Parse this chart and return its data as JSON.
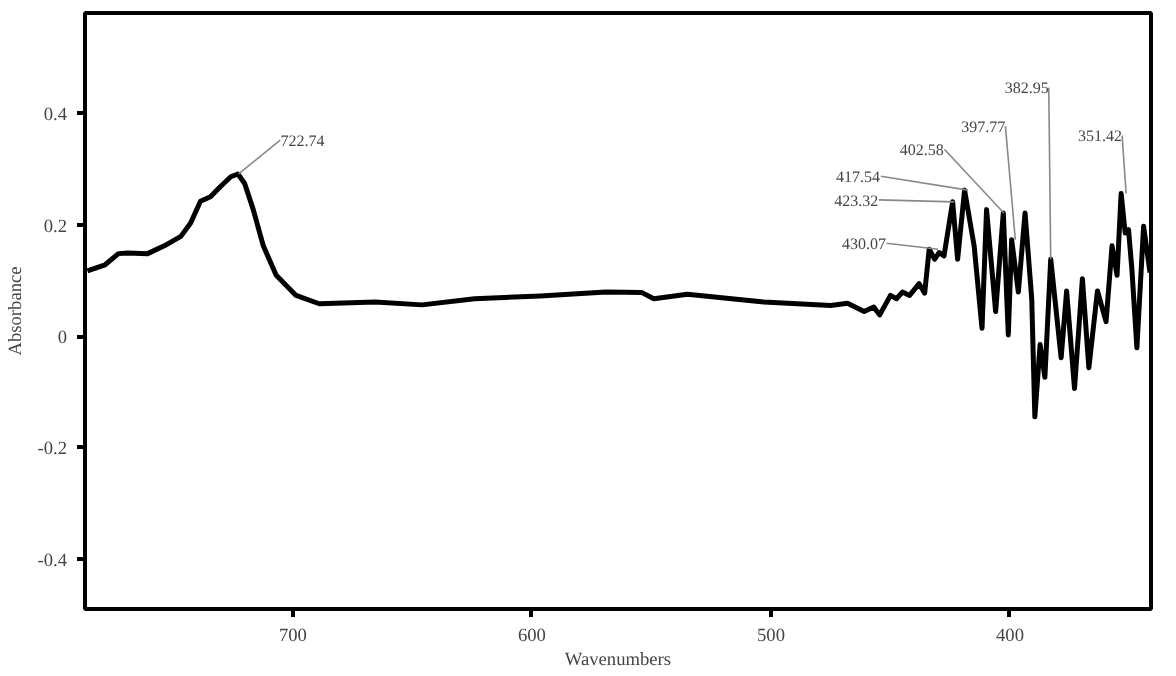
{
  "chart_data": {
    "type": "line",
    "xlabel": "Wavenumbers",
    "ylabel": "Absorbance",
    "xlim": [
      787,
      341
    ],
    "ylim": [
      -0.49,
      0.58
    ],
    "xticks": [
      700,
      600,
      500,
      400
    ],
    "yticks": [
      -0.4,
      -0.2,
      0,
      0.2,
      0.4
    ],
    "grid": false,
    "marker": "none",
    "line_style": "solid",
    "series": [
      {
        "color": "#000000",
        "x": [
          786,
          778.6,
          773,
          769,
          760.8,
          753.8,
          746.9,
          742.8,
          738.7,
          734.5,
          730.4,
          726,
          723,
          720.2,
          716.6,
          712.4,
          707,
          698.7,
          689,
          665.6,
          646,
          624,
          596.5,
          569,
          554,
          549,
          535,
          503,
          475,
          468,
          461,
          457,
          454.5,
          450,
          447.5,
          445,
          442,
          438,
          435.7,
          433.8,
          431.5,
          429.6,
          427.6,
          424,
          421.9,
          419,
          415,
          411.7,
          409.8,
          406,
          402.8,
          400.7,
          399.3,
          396.5,
          393.7,
          390.9,
          389.6,
          387.4,
          385.4,
          382.95,
          378.6,
          376.3,
          373,
          369.7,
          367,
          363.4,
          359.8,
          357.3,
          355.2,
          353.5,
          351.8,
          350.4,
          349,
          346.9,
          344.1,
          341.4
        ],
        "values": [
          0.117,
          0.128,
          0.148,
          0.149,
          0.148,
          0.162,
          0.179,
          0.203,
          0.242,
          0.25,
          0.268,
          0.286,
          0.291,
          0.274,
          0.227,
          0.162,
          0.109,
          0.073,
          0.058,
          0.061,
          0.056,
          0.067,
          0.072,
          0.079,
          0.078,
          0.067,
          0.075,
          0.061,
          0.055,
          0.059,
          0.044,
          0.052,
          0.038,
          0.073,
          0.067,
          0.079,
          0.073,
          0.094,
          0.077,
          0.156,
          0.138,
          0.15,
          0.144,
          0.241,
          0.138,
          0.262,
          0.162,
          0.014,
          0.227,
          0.044,
          0.221,
          0.002,
          0.173,
          0.079,
          0.221,
          0.067,
          -0.145,
          -0.015,
          -0.074,
          0.138,
          -0.039,
          0.081,
          -0.094,
          0.103,
          -0.057,
          0.081,
          0.026,
          0.162,
          0.109,
          0.256,
          0.185,
          0.191,
          0.12,
          -0.021,
          0.197,
          0.114
        ]
      }
    ],
    "annotations": [
      {
        "text": "722.74",
        "x": 722.74,
        "y": 0.291
      },
      {
        "text": "430.07",
        "x": 430.07,
        "y": 0.156
      },
      {
        "text": "423.32",
        "x": 423.32,
        "y": 0.241
      },
      {
        "text": "417.54",
        "x": 417.54,
        "y": 0.262
      },
      {
        "text": "402.58",
        "x": 402.58,
        "y": 0.221
      },
      {
        "text": "397.77",
        "x": 397.77,
        "y": 0.173
      },
      {
        "text": "382.95",
        "x": 382.95,
        "y": 0.138
      },
      {
        "text": "351.42",
        "x": 351.42,
        "y": 0.256
      }
    ]
  }
}
